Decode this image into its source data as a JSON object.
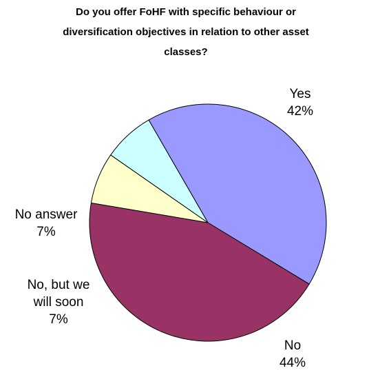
{
  "chart_data": {
    "type": "pie",
    "title": "Do you offer FoHF with specific behaviour or diversification objectives in relation to other asset classes?",
    "title_lines": [
      "Do you offer FoHF with specific behaviour or",
      "diversification objectives in relation to other asset",
      "classes?"
    ],
    "slices": [
      {
        "name": "Yes",
        "value": 42,
        "label_lines": [
          "Yes",
          "42%"
        ],
        "color": "#9999ff"
      },
      {
        "name": "No",
        "value": 44,
        "label_lines": [
          "No",
          "44%"
        ],
        "color": "#993366"
      },
      {
        "name": "No, but we will soon",
        "value": 7,
        "label_lines": [
          "No, but we",
          "will soon",
          "7%"
        ],
        "color": "#ffffcc"
      },
      {
        "name": "No answer",
        "value": 7,
        "label_lines": [
          "No answer",
          "7%"
        ],
        "color": "#ccffff"
      }
    ],
    "legend": "none"
  }
}
